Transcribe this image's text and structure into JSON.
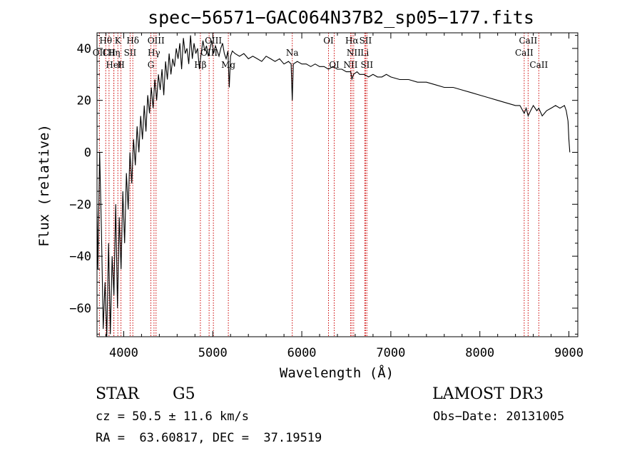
{
  "chart_data": {
    "type": "line",
    "title": "spec−56571−GAC064N37B2_sp05−177.fits",
    "xlabel": "Wavelength (Å)",
    "ylabel": "Flux (relative)",
    "xlim": [
      3700,
      9100
    ],
    "ylim": [
      -71,
      46
    ],
    "x_ticks": [
      4000,
      5000,
      6000,
      7000,
      8000,
      9000
    ],
    "x_tick_labels": [
      "4000",
      "5000",
      "6000",
      "7000",
      "8000",
      "9000"
    ],
    "y_ticks": [
      -60,
      -40,
      -20,
      0,
      20,
      40
    ],
    "y_tick_labels": [
      "−60",
      "−40",
      "−20",
      "0",
      "20",
      "40"
    ],
    "series": [
      {
        "name": "flux",
        "x": [
          3700,
          3710,
          3730,
          3750,
          3770,
          3790,
          3810,
          3830,
          3850,
          3870,
          3890,
          3910,
          3930,
          3950,
          3970,
          3990,
          4010,
          4030,
          4050,
          4070,
          4090,
          4110,
          4130,
          4150,
          4170,
          4190,
          4210,
          4230,
          4250,
          4270,
          4290,
          4310,
          4330,
          4350,
          4370,
          4390,
          4410,
          4430,
          4450,
          4470,
          4490,
          4510,
          4530,
          4550,
          4570,
          4590,
          4610,
          4630,
          4650,
          4670,
          4690,
          4710,
          4730,
          4750,
          4770,
          4790,
          4810,
          4830,
          4850,
          4870,
          4890,
          4910,
          4930,
          4950,
          4970,
          4990,
          5010,
          5030,
          5050,
          5070,
          5090,
          5110,
          5130,
          5150,
          5170,
          5185,
          5200,
          5220,
          5250,
          5300,
          5350,
          5400,
          5450,
          5500,
          5550,
          5600,
          5650,
          5700,
          5750,
          5800,
          5850,
          5880,
          5893,
          5905,
          5950,
          6000,
          6050,
          6100,
          6150,
          6200,
          6250,
          6300,
          6350,
          6400,
          6450,
          6500,
          6550,
          6563,
          6580,
          6620,
          6650,
          6700,
          6750,
          6800,
          6850,
          6900,
          6950,
          7000,
          7100,
          7200,
          7300,
          7400,
          7500,
          7600,
          7700,
          7800,
          7900,
          8000,
          8100,
          8200,
          8300,
          8400,
          8450,
          8498,
          8520,
          8542,
          8570,
          8600,
          8640,
          8662,
          8700,
          8750,
          8800,
          8850,
          8900,
          8950,
          8970,
          8990,
          9000,
          9010
        ],
        "values": [
          -20,
          -45,
          0,
          -30,
          -68,
          -50,
          -71,
          -35,
          -70,
          -40,
          -55,
          -20,
          -60,
          -25,
          -45,
          -15,
          -35,
          -8,
          -22,
          0,
          -12,
          5,
          -5,
          10,
          0,
          14,
          5,
          18,
          8,
          22,
          15,
          25,
          17,
          28,
          20,
          30,
          24,
          32,
          22,
          35,
          28,
          38,
          30,
          36,
          33,
          40,
          36,
          42,
          32,
          44,
          38,
          40,
          34,
          45,
          36,
          42,
          38,
          40,
          32,
          38,
          43,
          39,
          41,
          37,
          40,
          43,
          38,
          41,
          39,
          37,
          40,
          42,
          38,
          36,
          39,
          25,
          37,
          39,
          38,
          37,
          38,
          36,
          37,
          36,
          35,
          37,
          36,
          35,
          36,
          34,
          35,
          34,
          20,
          34,
          35,
          34,
          34,
          33,
          34,
          33,
          33,
          32,
          33,
          32,
          32,
          31,
          31,
          28,
          30,
          31,
          30,
          30,
          29,
          30,
          29,
          29,
          30,
          29,
          28,
          28,
          27,
          27,
          26,
          25,
          25,
          24,
          23,
          22,
          21,
          20,
          19,
          18,
          18,
          15,
          17,
          14,
          16,
          18,
          16,
          17,
          14,
          16,
          17,
          18,
          17,
          18,
          16,
          12,
          5,
          0
        ]
      }
    ],
    "lines": [
      {
        "name": "OII",
        "wave": 3727,
        "row": 1
      },
      {
        "name": "Hθ",
        "wave": 3798,
        "row": 0
      },
      {
        "name": "CII",
        "wave": 3835,
        "row": 1
      },
      {
        "name": "Hη",
        "wave": 3889,
        "row": 1
      },
      {
        "name": "HeI",
        "wave": 3889,
        "row": 2
      },
      {
        "name": "K",
        "wave": 3934,
        "row": 0
      },
      {
        "name": "H",
        "wave": 3969,
        "row": 2
      },
      {
        "name": "SII",
        "wave": 4072,
        "row": 1
      },
      {
        "name": "Hδ",
        "wave": 4102,
        "row": 0
      },
      {
        "name": "G",
        "wave": 4305,
        "row": 2
      },
      {
        "name": "Hγ",
        "wave": 4340,
        "row": 1
      },
      {
        "name": "OIII",
        "wave": 4363,
        "row": 0
      },
      {
        "name": "Hβ",
        "wave": 4861,
        "row": 2
      },
      {
        "name": "OIII",
        "wave": 4959,
        "row": 1
      },
      {
        "name": "OIII",
        "wave": 5007,
        "row": 0
      },
      {
        "name": "Mg",
        "wave": 5175,
        "row": 2
      },
      {
        "name": "Na",
        "wave": 5893,
        "row": 1
      },
      {
        "name": "OI",
        "wave": 6300,
        "row": 0
      },
      {
        "name": "OI",
        "wave": 6364,
        "row": 2
      },
      {
        "name": "NII",
        "wave": 6548,
        "row": 2
      },
      {
        "name": "Hα",
        "wave": 6563,
        "row": 0
      },
      {
        "name": "NII",
        "wave": 6583,
        "row": 1
      },
      {
        "name": "Li",
        "wave": 6707,
        "row": 1
      },
      {
        "name": "SII",
        "wave": 6716,
        "row": 0
      },
      {
        "name": "SII",
        "wave": 6731,
        "row": 2
      },
      {
        "name": "CaII",
        "wave": 8498,
        "row": 1
      },
      {
        "name": "CaII",
        "wave": 8542,
        "row": 0
      },
      {
        "name": "CaII",
        "wave": 8662,
        "row": 2
      }
    ]
  },
  "info": {
    "object_class": "STAR",
    "subclass": "G5",
    "survey": "LAMOST DR3",
    "cz": "cz = 50.5 ± 11.6 km/s",
    "obs_date": "Obs−Date: 20131005",
    "coords": "RA =  63.60817, DEC =  37.19519"
  }
}
